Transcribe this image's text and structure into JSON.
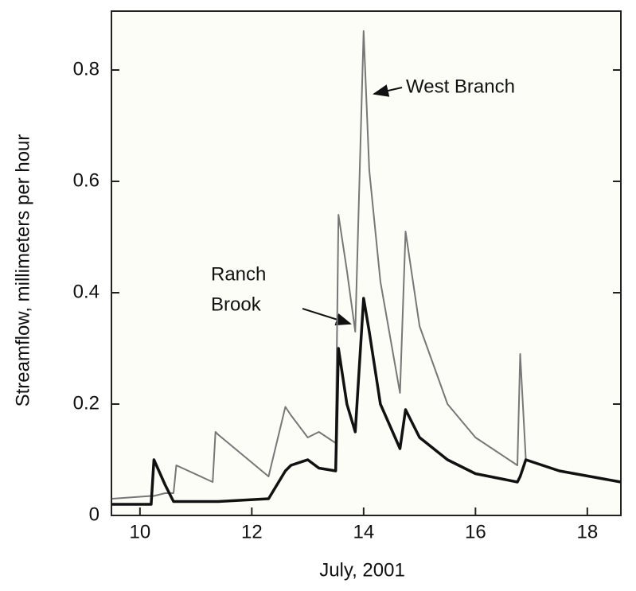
{
  "chart_data": {
    "type": "line",
    "xlabel": "July, 2001",
    "ylabel": "Streamflow, millimeters per hour",
    "x": [
      9.5,
      10.2,
      10.25,
      10.45,
      10.6,
      10.65,
      11.3,
      11.35,
      11.4,
      12.3,
      12.6,
      12.7,
      13.0,
      13.2,
      13.5,
      13.55,
      13.7,
      13.85,
      14.0,
      14.1,
      14.3,
      14.65,
      14.75,
      15.0,
      15.5,
      16.0,
      16.75,
      16.8,
      16.9,
      17.5,
      18.6
    ],
    "series": [
      {
        "name": "West Branch",
        "color": "#777777",
        "values": [
          0.03,
          0.035,
          0.035,
          0.04,
          0.04,
          0.09,
          0.06,
          0.15,
          0.145,
          0.07,
          0.195,
          0.18,
          0.14,
          0.15,
          0.13,
          0.54,
          0.44,
          0.33,
          0.87,
          0.62,
          0.42,
          0.22,
          0.51,
          0.34,
          0.2,
          0.14,
          0.09,
          0.29,
          0.1,
          0.08,
          0.06
        ]
      },
      {
        "name": "Ranch Brook",
        "color": "#111111",
        "values": [
          0.02,
          0.02,
          0.1,
          0.055,
          0.025,
          0.025,
          0.025,
          0.025,
          0.025,
          0.03,
          0.08,
          0.09,
          0.1,
          0.085,
          0.08,
          0.3,
          0.2,
          0.15,
          0.39,
          0.33,
          0.2,
          0.12,
          0.19,
          0.14,
          0.1,
          0.075,
          0.06,
          0.07,
          0.1,
          0.08,
          0.06
        ]
      }
    ],
    "annotations": [
      {
        "text": "West Branch"
      },
      {
        "lines": [
          "Ranch",
          "Brook"
        ]
      }
    ],
    "xlim": [
      9.49,
      18.6
    ],
    "ylim": [
      0,
      0.9
    ],
    "xticks": [
      10,
      12,
      14,
      16,
      18
    ],
    "yticks": [
      0,
      0.2,
      0.4,
      0.6,
      0.8
    ]
  }
}
